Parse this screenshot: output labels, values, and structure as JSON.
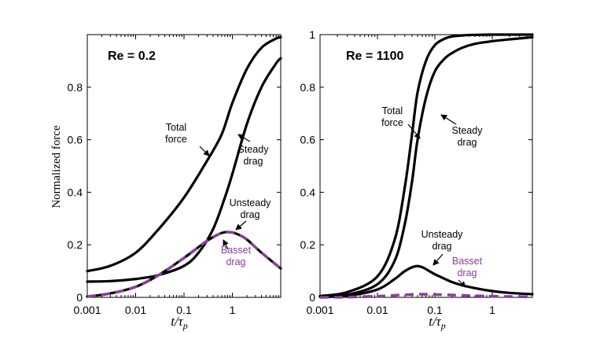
{
  "chart_data": [
    {
      "type": "line",
      "title": "Re = 0.2",
      "xlabel": "t/τp",
      "ylabel": "Normalized force",
      "xscale": "log",
      "xlim": [
        0.001,
        10
      ],
      "ylim": [
        0,
        1
      ],
      "xticks": [
        0.001,
        0.01,
        0.1,
        1
      ],
      "xtick_labels": [
        "0.001",
        "0.01",
        "0.1",
        "1"
      ],
      "yticks": [
        0,
        0.2,
        0.4,
        0.6,
        0.8
      ],
      "ytick_labels": [
        "0",
        "0.2",
        "0.4",
        "0.6",
        "0.8"
      ],
      "series": [
        {
          "name": "Total force",
          "color": "#000000",
          "style": "solid",
          "x": [
            0.001,
            0.003,
            0.01,
            0.03,
            0.1,
            0.3,
            0.6,
            1,
            2,
            4,
            8,
            10
          ],
          "y": [
            0.1,
            0.12,
            0.17,
            0.26,
            0.38,
            0.52,
            0.62,
            0.74,
            0.87,
            0.95,
            0.985,
            0.99
          ]
        },
        {
          "name": "Steady drag",
          "color": "#000000",
          "style": "solid",
          "x": [
            0.001,
            0.003,
            0.01,
            0.03,
            0.1,
            0.2,
            0.4,
            0.7,
            1,
            2,
            4,
            8,
            10
          ],
          "y": [
            0.06,
            0.062,
            0.07,
            0.085,
            0.12,
            0.17,
            0.26,
            0.38,
            0.47,
            0.66,
            0.8,
            0.89,
            0.91
          ]
        },
        {
          "name": "Unsteady drag",
          "color": "#000000",
          "style": "solid",
          "x": [
            0.001,
            0.003,
            0.01,
            0.03,
            0.1,
            0.3,
            0.6,
            0.9,
            1.3,
            2,
            4,
            10
          ],
          "y": [
            0.003,
            0.015,
            0.04,
            0.085,
            0.15,
            0.215,
            0.245,
            0.248,
            0.24,
            0.22,
            0.17,
            0.11
          ]
        },
        {
          "name": "Basset drag",
          "color": "#8a3d9b",
          "style": "dashed",
          "x": [
            0.001,
            0.003,
            0.01,
            0.03,
            0.1,
            0.3,
            0.6,
            0.9,
            1.3,
            2,
            4,
            10
          ],
          "y": [
            0.003,
            0.015,
            0.04,
            0.085,
            0.15,
            0.215,
            0.245,
            0.248,
            0.24,
            0.22,
            0.17,
            0.11
          ]
        }
      ],
      "annotations": [
        {
          "lines": [
            "Total",
            "force"
          ],
          "color": "#000000"
        },
        {
          "lines": [
            "Steady",
            "drag"
          ],
          "color": "#000000"
        },
        {
          "lines": [
            "Unsteady",
            "drag"
          ],
          "color": "#000000"
        },
        {
          "lines": [
            "Basset",
            "drag"
          ],
          "color": "#8a3d9b"
        }
      ]
    },
    {
      "type": "line",
      "title": "Re = 1100",
      "xlabel": "t/τp",
      "ylabel": "",
      "xscale": "log",
      "xlim": [
        0.001,
        5
      ],
      "ylim": [
        0,
        1
      ],
      "xticks": [
        0.001,
        0.01,
        0.1,
        1
      ],
      "xtick_labels": [
        "0.001",
        "0.01",
        "0.1",
        "1"
      ],
      "yticks": [
        0,
        0.2,
        0.4,
        0.6,
        0.8,
        1
      ],
      "ytick_labels": [
        "0",
        "0.2",
        "0.4",
        "0.6",
        "0.8",
        "1"
      ],
      "series": [
        {
          "name": "Total force",
          "color": "#000000",
          "style": "solid",
          "x": [
            0.001,
            0.003,
            0.01,
            0.02,
            0.03,
            0.04,
            0.05,
            0.07,
            0.1,
            0.15,
            0.2,
            0.3,
            0.5,
            1,
            5
          ],
          "y": [
            0.005,
            0.02,
            0.08,
            0.22,
            0.42,
            0.62,
            0.78,
            0.9,
            0.96,
            0.985,
            0.993,
            0.997,
            0.999,
            1.0,
            1.0
          ]
        },
        {
          "name": "Steady drag",
          "color": "#000000",
          "style": "solid",
          "x": [
            0.001,
            0.003,
            0.01,
            0.02,
            0.03,
            0.04,
            0.05,
            0.07,
            0.1,
            0.15,
            0.2,
            0.3,
            0.5,
            1,
            2,
            5
          ],
          "y": [
            0.003,
            0.01,
            0.05,
            0.14,
            0.28,
            0.44,
            0.6,
            0.76,
            0.86,
            0.91,
            0.93,
            0.95,
            0.965,
            0.975,
            0.982,
            0.99
          ]
        },
        {
          "name": "Unsteady drag",
          "color": "#000000",
          "style": "solid",
          "x": [
            0.001,
            0.003,
            0.01,
            0.02,
            0.03,
            0.045,
            0.06,
            0.08,
            0.1,
            0.15,
            0.2,
            0.3,
            0.5,
            1,
            2,
            5
          ],
          "y": [
            0.002,
            0.006,
            0.03,
            0.07,
            0.1,
            0.118,
            0.115,
            0.1,
            0.088,
            0.07,
            0.058,
            0.046,
            0.035,
            0.024,
            0.017,
            0.012
          ]
        },
        {
          "name": "Basset drag",
          "color": "#8a3d9b",
          "style": "dashed",
          "x": [
            0.001,
            0.003,
            0.01,
            0.02,
            0.04,
            0.06,
            0.1,
            0.2,
            0.5,
            1,
            2,
            5
          ],
          "y": [
            0.0,
            0.001,
            0.004,
            0.008,
            0.011,
            0.012,
            0.011,
            0.009,
            0.006,
            0.004,
            0.003,
            0.002
          ]
        }
      ],
      "annotations": [
        {
          "lines": [
            "Total",
            "force"
          ],
          "color": "#000000"
        },
        {
          "lines": [
            "Steady",
            "drag"
          ],
          "color": "#000000"
        },
        {
          "lines": [
            "Unsteady",
            "drag"
          ],
          "color": "#000000"
        },
        {
          "lines": [
            "Basset",
            "drag"
          ],
          "color": "#8a3d9b"
        }
      ]
    }
  ]
}
